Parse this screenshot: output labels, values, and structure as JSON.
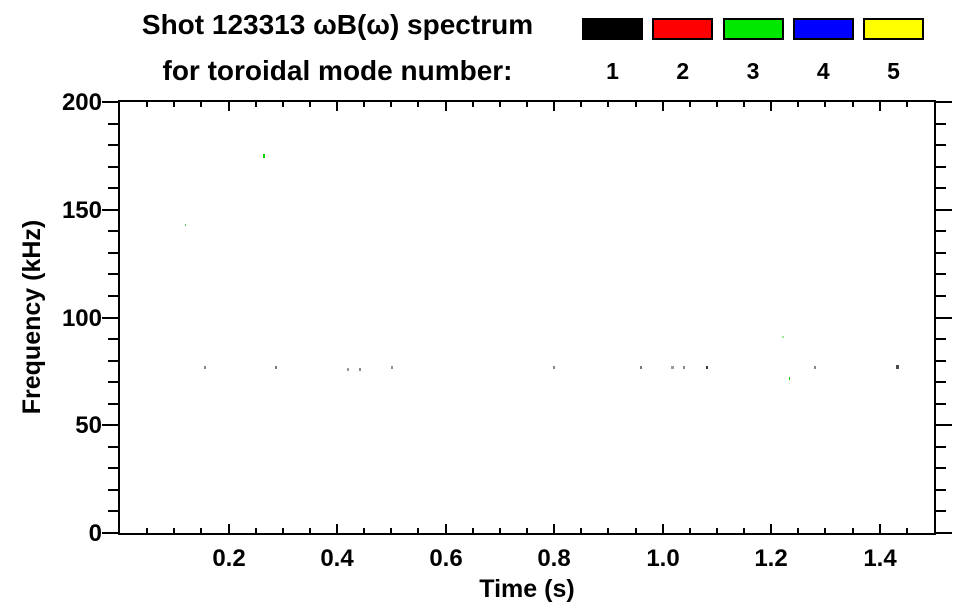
{
  "title": {
    "line1": "Shot 123313 ωB(ω) spectrum",
    "line2": "for toroidal mode number:"
  },
  "legend": {
    "entries": [
      {
        "label": "1",
        "color": "#000000",
        "name": "mode-1"
      },
      {
        "label": "2",
        "color": "#ff0000",
        "name": "mode-2"
      },
      {
        "label": "3",
        "color": "#00e800",
        "name": "mode-3"
      },
      {
        "label": "4",
        "color": "#0000ff",
        "name": "mode-4"
      },
      {
        "label": "5",
        "color": "#ffff00",
        "name": "mode-5"
      }
    ]
  },
  "chart_data": {
    "type": "scatter",
    "title": "Shot 123313 ωB(ω) spectrum for toroidal mode number: 1 2 3 4 5",
    "xlabel": "Time (s)",
    "ylabel": "Frequency (kHz)",
    "xlim": [
      0,
      1.5
    ],
    "ylim": [
      0,
      200
    ],
    "grid": false,
    "legend_position": "above-top-right",
    "x_major_ticks": [
      0.2,
      0.4,
      0.6,
      0.8,
      1.0,
      1.2,
      1.4
    ],
    "x_major_labels": [
      "0.2",
      "0.4",
      "0.6",
      "0.8",
      "1.0",
      "1.2",
      "1.4"
    ],
    "x_minor_interval": 0.05,
    "y_major_ticks": [
      0,
      50,
      100,
      150,
      200
    ],
    "y_major_labels": [
      "0",
      "50",
      "100",
      "150",
      "200"
    ],
    "y_minor_interval": 10,
    "legend_entries": [
      {
        "mode": 1,
        "color": "#000000"
      },
      {
        "mode": 2,
        "color": "#ff0000"
      },
      {
        "mode": 3,
        "color": "#00e800"
      },
      {
        "mode": 4,
        "color": "#0000ff"
      },
      {
        "mode": 5,
        "color": "#ffff00"
      }
    ],
    "points": [
      {
        "t": 0.119,
        "f": 143,
        "mode": 3,
        "c": "#55cc55",
        "w": 1,
        "h": 2
      },
      {
        "t": 0.156,
        "f": 77,
        "mode": 1,
        "c": "#8a8a8a",
        "w": 2,
        "h": 3
      },
      {
        "t": 0.266,
        "f": 175,
        "mode": 3,
        "c": "#00d400",
        "w": 2,
        "h": 4
      },
      {
        "t": 0.287,
        "f": 77,
        "mode": 1,
        "c": "#7d7d7d",
        "w": 2,
        "h": 3
      },
      {
        "t": 0.42,
        "f": 76,
        "mode": 1,
        "c": "#9a9a9a",
        "w": 2,
        "h": 3
      },
      {
        "t": 0.442,
        "f": 76,
        "mode": 1,
        "c": "#8a8a8a",
        "w": 2,
        "h": 3
      },
      {
        "t": 0.501,
        "f": 77,
        "mode": 1,
        "c": "#909090",
        "w": 2,
        "h": 3
      },
      {
        "t": 0.8,
        "f": 77,
        "mode": 1,
        "c": "#8a8a8a",
        "w": 2,
        "h": 3
      },
      {
        "t": 0.96,
        "f": 77,
        "mode": 1,
        "c": "#777777",
        "w": 2,
        "h": 3
      },
      {
        "t": 1.018,
        "f": 77,
        "mode": 1,
        "c": "#9a9a9a",
        "w": 3,
        "h": 3
      },
      {
        "t": 1.04,
        "f": 77,
        "mode": 1,
        "c": "#8a8a8a",
        "w": 2,
        "h": 3
      },
      {
        "t": 1.082,
        "f": 77,
        "mode": 1,
        "c": "#3a3a3a",
        "w": 2,
        "h": 3
      },
      {
        "t": 1.221,
        "f": 91,
        "mode": 3,
        "c": "#99e699",
        "w": 2,
        "h": 2
      },
      {
        "t": 1.233,
        "f": 72,
        "mode": 3,
        "c": "#00c400",
        "w": 1,
        "h": 3
      },
      {
        "t": 1.28,
        "f": 77,
        "mode": 1,
        "c": "#8a8a8a",
        "w": 2,
        "h": 3
      },
      {
        "t": 1.431,
        "f": 77,
        "mode": 1,
        "c": "#4a4a4a",
        "w": 3,
        "h": 4
      }
    ]
  }
}
